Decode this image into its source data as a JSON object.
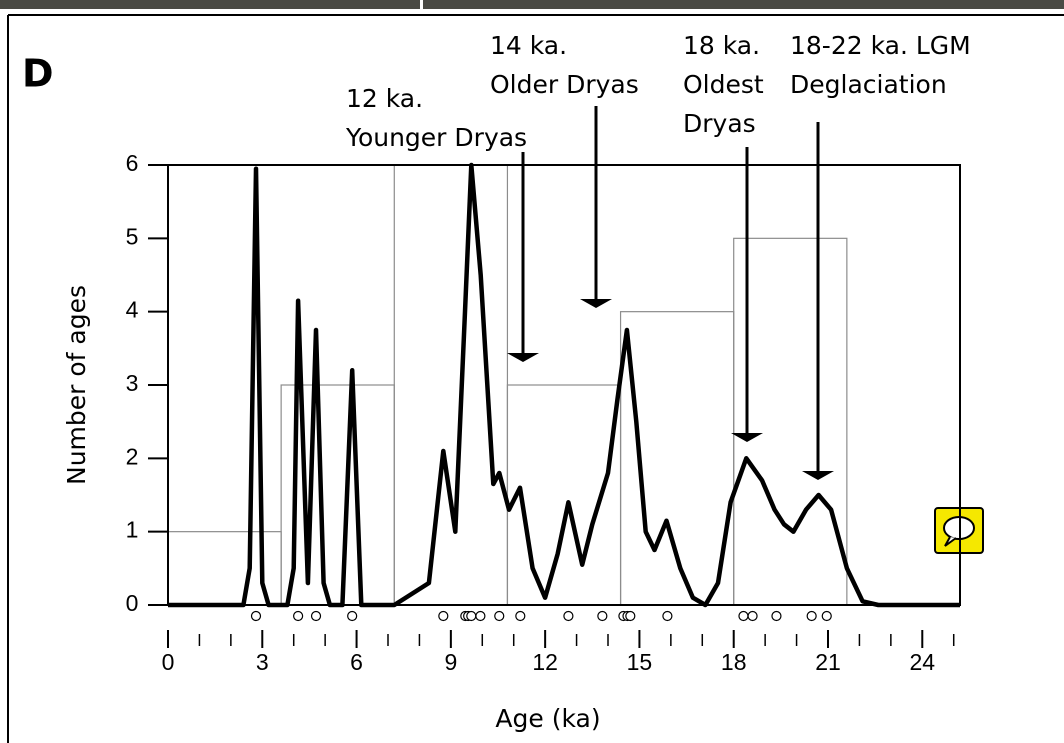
{
  "chart_data": {
    "type": "histogram",
    "title": "D",
    "xlabel": "Age (ka)",
    "ylabel": "Number of ages",
    "bins": [
      0,
      3.6,
      7.2,
      10.8,
      14.4,
      18,
      21.6
    ],
    "counts": [
      1,
      3,
      6,
      3,
      4,
      5
    ],
    "bar_color": "#8c8c8c",
    "curve": {
      "color": "#000000",
      "x": [
        0,
        2.4,
        2.6,
        2.8,
        3.0,
        3.2,
        3.8,
        4.0,
        4.14,
        4.45,
        4.71,
        4.95,
        5.15,
        5.55,
        5.86,
        6.15,
        7.2,
        8.3,
        8.76,
        9.14,
        9.45,
        9.65,
        9.95,
        10.35,
        10.54,
        10.85,
        11.2,
        11.6,
        12.0,
        12.4,
        12.74,
        13.18,
        13.5,
        14.0,
        14.3,
        14.6,
        14.9,
        15.2,
        15.48,
        15.86,
        16.3,
        16.7,
        17.1,
        17.5,
        17.9,
        18.4,
        18.9,
        19.3,
        19.6,
        19.9,
        20.3,
        20.7,
        21.1,
        21.6,
        22.1,
        22.6,
        25.2
      ],
      "y": [
        0,
        0,
        0.5,
        5.95,
        0.3,
        0,
        0,
        0.5,
        4.15,
        0.3,
        3.75,
        0.3,
        0,
        0,
        3.2,
        0,
        0,
        0.3,
        2.1,
        1.0,
        4.0,
        6.0,
        4.5,
        1.65,
        1.8,
        1.3,
        1.6,
        0.5,
        0.1,
        0.7,
        1.4,
        0.55,
        1.1,
        1.8,
        2.8,
        3.75,
        2.5,
        1.0,
        0.75,
        1.15,
        0.5,
        0.1,
        0,
        0.3,
        1.4,
        2.0,
        1.7,
        1.3,
        1.1,
        1.0,
        1.3,
        1.5,
        1.3,
        0.5,
        0.05,
        0,
        0
      ]
    },
    "ages": [
      2.8,
      4.14,
      4.71,
      5.86,
      8.76,
      9.46,
      9.55,
      9.65,
      9.94,
      10.54,
      11.21,
      12.74,
      13.82,
      14.49,
      14.62,
      14.71,
      15.89,
      18.31,
      18.6,
      19.36,
      20.48,
      20.96
    ],
    "xlim": [
      0,
      25.2
    ],
    "ylim": [
      0,
      6
    ],
    "xticks": [
      0,
      3,
      6,
      9,
      12,
      15,
      18,
      21,
      24
    ],
    "xminorticks": [
      1,
      2,
      4,
      5,
      7,
      8,
      10,
      11,
      13,
      14,
      16,
      17,
      19,
      20,
      22,
      23,
      25
    ],
    "yticks": [
      0,
      1,
      2,
      3,
      4,
      5,
      6
    ],
    "annotations": [
      {
        "lines": [
          "12 ka.",
          "Younger Dryas"
        ]
      },
      {
        "lines": [
          "14 ka.",
          "Older Dryas"
        ]
      },
      {
        "lines": [
          "18 ka.",
          "Oldest",
          "Dryas"
        ]
      },
      {
        "lines": [
          "18-22 ka. LGM",
          "Deglaciation"
        ]
      }
    ]
  }
}
